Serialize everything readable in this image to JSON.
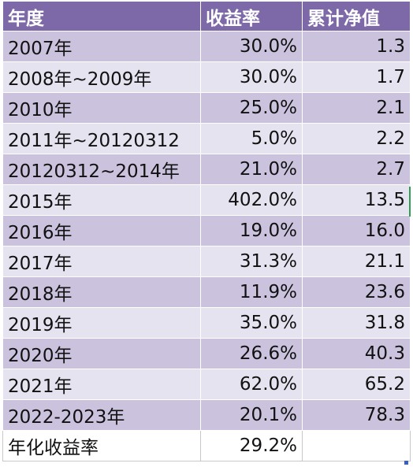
{
  "table": {
    "headers": [
      "年度",
      "收益率",
      "累计净值"
    ],
    "rows": [
      {
        "year": "2007年",
        "return": "30.0%",
        "nav": "1.3"
      },
      {
        "year": "2008年~2009年",
        "return": "30.0%",
        "nav": "1.7"
      },
      {
        "year": "2010年",
        "return": "25.0%",
        "nav": "2.1"
      },
      {
        "year": "2011年~20120312",
        "return": "5.0%",
        "nav": "2.2"
      },
      {
        "year": "20120312~2014年",
        "return": "21.0%",
        "nav": "2.7"
      },
      {
        "year": "2015年",
        "return": "402.0%",
        "nav": "13.5"
      },
      {
        "year": "2016年",
        "return": "19.0%",
        "nav": "16.0"
      },
      {
        "year": "2017年",
        "return": "31.3%",
        "nav": "21.1"
      },
      {
        "year": "2018年",
        "return": "11.9%",
        "nav": "23.6"
      },
      {
        "year": "2019年",
        "return": "35.0%",
        "nav": "31.8"
      },
      {
        "year": "2020年",
        "return": "26.6%",
        "nav": "40.3"
      },
      {
        "year": "2021年",
        "return": "62.0%",
        "nav": "65.2"
      },
      {
        "year": "2022-2023年",
        "return": "20.1%",
        "nav": "78.3"
      }
    ],
    "summary": {
      "label": "年化收益率",
      "return": "29.2%",
      "nav": ""
    }
  },
  "colors": {
    "header_bg": "#7d68a8",
    "row_dark": "#cbc3de",
    "row_light": "#e6e3f0",
    "selection_marker": "#2e9e4f"
  }
}
